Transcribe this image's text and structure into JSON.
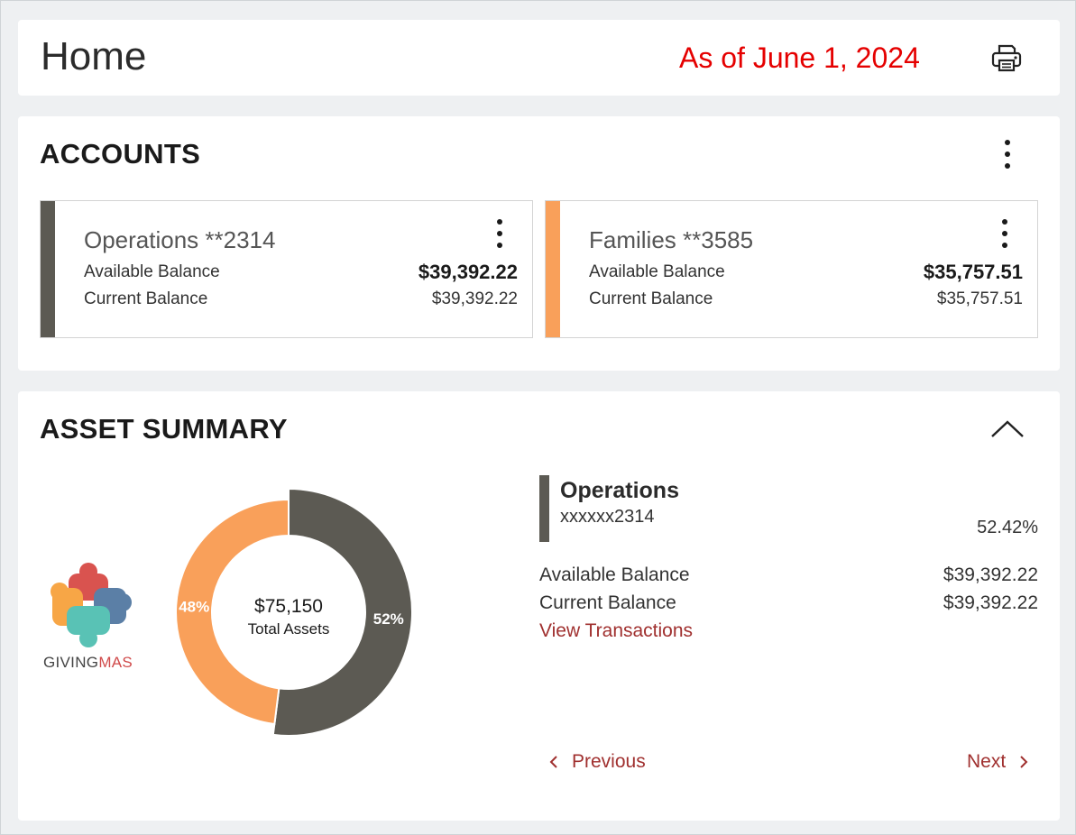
{
  "header": {
    "title": "Home",
    "as_of": "As of June 1, 2024",
    "print_icon": "printer-icon"
  },
  "accounts": {
    "title": "ACCOUNTS",
    "menu_icon": "kebab-icon",
    "items": [
      {
        "name": "Operations **2314",
        "available_label": "Available Balance",
        "available_value": "$39,392.22",
        "current_label": "Current Balance",
        "current_value": "$39,392.22",
        "color": "#5c5a53"
      },
      {
        "name": "Families **3585",
        "available_label": "Available Balance",
        "available_value": "$35,757.51",
        "current_label": "Current Balance",
        "current_value": "$35,757.51",
        "color": "#f9a05a"
      }
    ]
  },
  "asset_summary": {
    "title": "ASSET SUMMARY",
    "collapse_icon": "chevron-up-icon",
    "logo": {
      "text_a": "GIVING",
      "text_b": "MAS"
    },
    "selected": {
      "name": "Operations",
      "number": "xxxxxx2314",
      "percent": "52.42%",
      "available_label": "Available Balance",
      "available_value": "$39,392.22",
      "current_label": "Current Balance",
      "current_value": "$39,392.22",
      "link_label": "View Transactions"
    },
    "pager": {
      "previous": "Previous",
      "next": "Next"
    }
  },
  "chart_data": {
    "type": "pie",
    "center_value": "$75,150",
    "center_label": "Total Assets",
    "slices": [
      {
        "label": "52%",
        "value": 52,
        "color": "#5c5a53"
      },
      {
        "label": "48%",
        "value": 48,
        "color": "#f9a05a"
      }
    ]
  }
}
